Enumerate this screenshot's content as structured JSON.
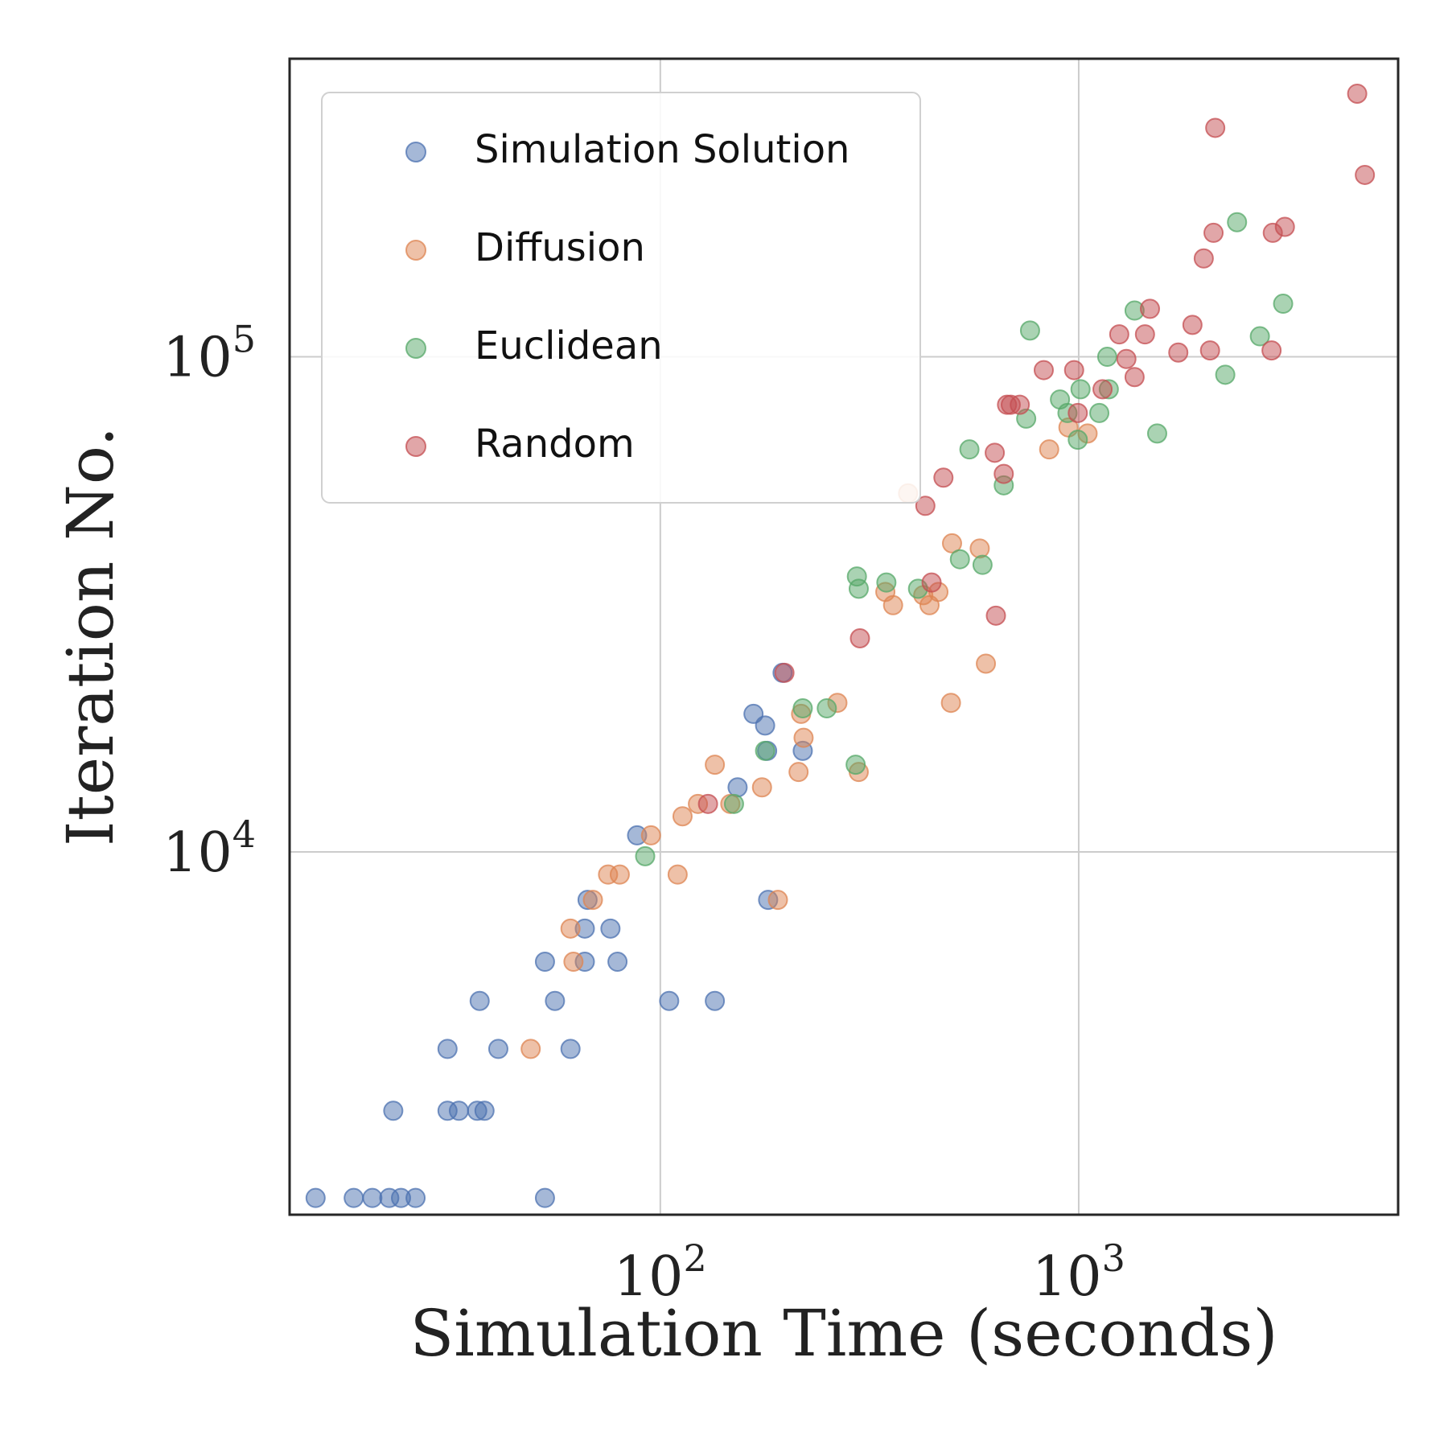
{
  "chart_data": {
    "type": "scatter",
    "xlabel": "Simulation Time (seconds)",
    "ylabel": "Iteration No.",
    "x_scale": "log",
    "y_scale": "log",
    "xlim": [
      13,
      5800
    ],
    "ylim": [
      1850,
      400000
    ],
    "x_ticks": [
      {
        "value": 100,
        "base": "10",
        "exp": "2"
      },
      {
        "value": 1000,
        "base": "10",
        "exp": "3"
      }
    ],
    "y_ticks": [
      {
        "value": 10000,
        "base": "10",
        "exp": "4"
      },
      {
        "value": 100000,
        "base": "10",
        "exp": "5"
      }
    ],
    "grid": true,
    "legend_position": "top-left",
    "series": [
      {
        "name": "Simulation Solution",
        "color": "#4c72b0",
        "points": [
          [
            15,
            2000
          ],
          [
            18.5,
            2000
          ],
          [
            20.5,
            2000
          ],
          [
            22.5,
            2000
          ],
          [
            24,
            2000
          ],
          [
            26,
            2000
          ],
          [
            53,
            2000
          ],
          [
            23,
            3000
          ],
          [
            31,
            3000
          ],
          [
            33,
            3000
          ],
          [
            36.5,
            3000
          ],
          [
            38,
            3000
          ],
          [
            31,
            4000
          ],
          [
            41,
            4000
          ],
          [
            61,
            4000
          ],
          [
            37,
            5000
          ],
          [
            56,
            5000
          ],
          [
            105,
            5000
          ],
          [
            135,
            5000
          ],
          [
            53,
            6000
          ],
          [
            66,
            6000
          ],
          [
            79,
            6000
          ],
          [
            66,
            7000
          ],
          [
            76,
            7000
          ],
          [
            67,
            8000
          ],
          [
            181,
            8000
          ],
          [
            88,
            10800
          ],
          [
            153,
            13500
          ],
          [
            167,
            19000
          ],
          [
            178,
            18000
          ],
          [
            180,
            16000
          ],
          [
            219,
            16000
          ],
          [
            196,
            23000
          ]
        ]
      },
      {
        "name": "Diffusion",
        "color": "#dd8452",
        "points": [
          [
            49,
            4000
          ],
          [
            62,
            6000
          ],
          [
            61,
            7000
          ],
          [
            69,
            8000
          ],
          [
            75,
            9000
          ],
          [
            80,
            9000
          ],
          [
            110,
            9000
          ],
          [
            95,
            10800
          ],
          [
            113,
            11800
          ],
          [
            123,
            12500
          ],
          [
            147,
            12500
          ],
          [
            135,
            15000
          ],
          [
            175,
            13500
          ],
          [
            214,
            14500
          ],
          [
            217,
            19000
          ],
          [
            220,
            17000
          ],
          [
            191,
            8000
          ],
          [
            265,
            20000
          ],
          [
            298,
            14500
          ],
          [
            345,
            33500
          ],
          [
            360,
            31500
          ],
          [
            440,
            31500
          ],
          [
            425,
            33000
          ],
          [
            462,
            33500
          ],
          [
            498,
            42000
          ],
          [
            495,
            20000
          ],
          [
            580,
            41000
          ],
          [
            600,
            24000
          ],
          [
            391,
            53000
          ],
          [
            850,
            65000
          ],
          [
            945,
            72000
          ],
          [
            1050,
            70000
          ]
        ]
      },
      {
        "name": "Euclidean",
        "color": "#55a868",
        "points": [
          [
            92,
            9800
          ],
          [
            150,
            12500
          ],
          [
            178,
            16000
          ],
          [
            219,
            19500
          ],
          [
            250,
            19500
          ],
          [
            293,
            15000
          ],
          [
            295,
            36000
          ],
          [
            298,
            34000
          ],
          [
            347,
            35000
          ],
          [
            413,
            34000
          ],
          [
            520,
            39000
          ],
          [
            589,
            38000
          ],
          [
            548,
            65000
          ],
          [
            662,
            55000
          ],
          [
            749,
            75000
          ],
          [
            765,
            113000
          ],
          [
            902,
            82000
          ],
          [
            940,
            77000
          ],
          [
            995,
            68000
          ],
          [
            1010,
            86000
          ],
          [
            1120,
            77000
          ],
          [
            1170,
            100000
          ],
          [
            1180,
            86000
          ],
          [
            1360,
            124000
          ],
          [
            1540,
            70000
          ],
          [
            2240,
            92000
          ],
          [
            2390,
            187000
          ],
          [
            2710,
            110000
          ],
          [
            3080,
            128000
          ]
        ]
      },
      {
        "name": "Random",
        "color": "#c44e52",
        "points": [
          [
            130,
            12500
          ],
          [
            198,
            23000
          ],
          [
            300,
            27000
          ],
          [
            430,
            50000
          ],
          [
            445,
            35000
          ],
          [
            475,
            57000
          ],
          [
            630,
            64000
          ],
          [
            634,
            30000
          ],
          [
            662,
            58000
          ],
          [
            674,
            80000
          ],
          [
            688,
            80000
          ],
          [
            723,
            80000
          ],
          [
            825,
            94000
          ],
          [
            975,
            94000
          ],
          [
            995,
            77000
          ],
          [
            1140,
            86000
          ],
          [
            1250,
            111000
          ],
          [
            1300,
            99000
          ],
          [
            1360,
            91000
          ],
          [
            1440,
            111000
          ],
          [
            1480,
            125000
          ],
          [
            1730,
            102000
          ],
          [
            1870,
            116000
          ],
          [
            1990,
            158000
          ],
          [
            2060,
            103000
          ],
          [
            2100,
            178000
          ],
          [
            2120,
            290000
          ],
          [
            2890,
            103000
          ],
          [
            2910,
            178000
          ],
          [
            3110,
            183000
          ],
          [
            4630,
            340000
          ],
          [
            4830,
            233000
          ]
        ]
      }
    ]
  }
}
